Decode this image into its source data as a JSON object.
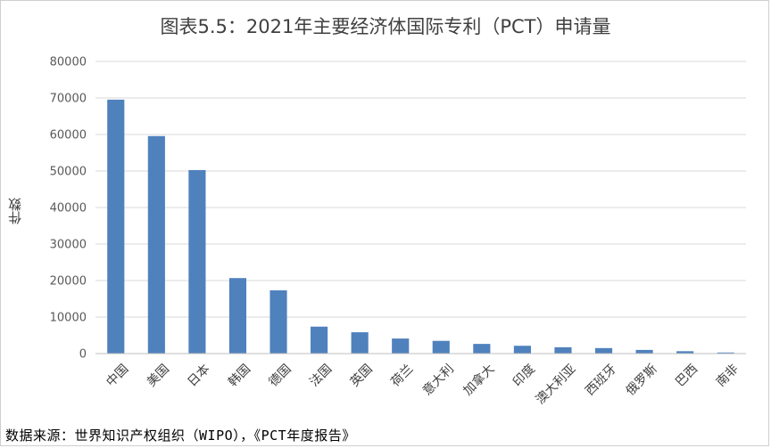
{
  "chart_data": {
    "type": "bar",
    "title": "图表5.5：2021年主要经济体国际专利（PCT）申请量",
    "ylabel": "件数",
    "xlabel": "",
    "ylim": [
      0,
      80000
    ],
    "yticks": [
      0,
      10000,
      20000,
      30000,
      40000,
      50000,
      60000,
      70000,
      80000
    ],
    "grid": true,
    "bar_color": "#4f81bd",
    "categories": [
      "中国",
      "美国",
      "日本",
      "韩国",
      "德国",
      "法国",
      "英国",
      "荷兰",
      "意大利",
      "加拿大",
      "印度",
      "澳大利亚",
      "西班牙",
      "俄罗斯",
      "巴西",
      "南非"
    ],
    "values": [
      69540,
      59570,
      50260,
      20678,
      17322,
      7380,
      5841,
      4125,
      3486,
      2650,
      2139,
      1741,
      1509,
      1003,
      650,
      300
    ]
  },
  "source_note": "数据来源：世界知识产权组织（WIPO），《PCT年度报告》"
}
